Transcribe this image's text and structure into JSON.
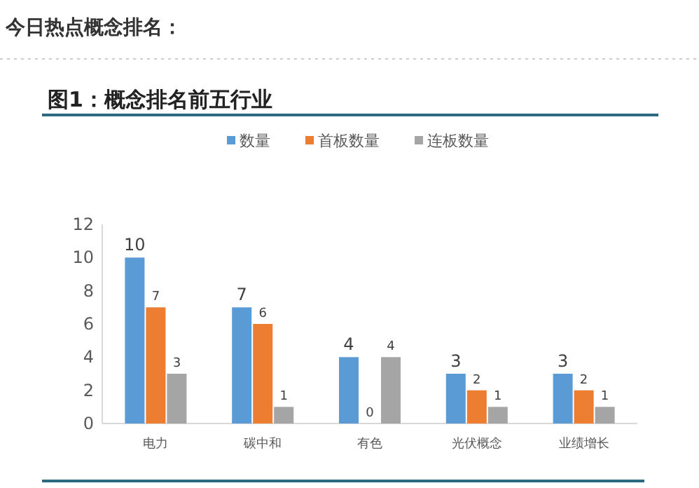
{
  "chart_data": {
    "type": "bar",
    "title": "今日热点概念排名：",
    "subtitle": "图1：概念排名前五行业",
    "categories": [
      "电力",
      "碳中和",
      "有色",
      "光伏概念",
      "业绩增长"
    ],
    "series": [
      {
        "name": "数量",
        "color": "#5b9bd5",
        "values": [
          10,
          7,
          4,
          3,
          3
        ]
      },
      {
        "name": "首板数量",
        "color": "#ed7d31",
        "values": [
          7,
          6,
          0,
          2,
          2
        ]
      },
      {
        "name": "连板数量",
        "color": "#a5a5a5",
        "values": [
          3,
          1,
          4,
          1,
          1
        ]
      }
    ],
    "ylim": [
      0,
      12
    ],
    "yticks": [
      0,
      2,
      4,
      6,
      8,
      10,
      12
    ],
    "grid": false,
    "legend": "top",
    "data_labels": true
  }
}
